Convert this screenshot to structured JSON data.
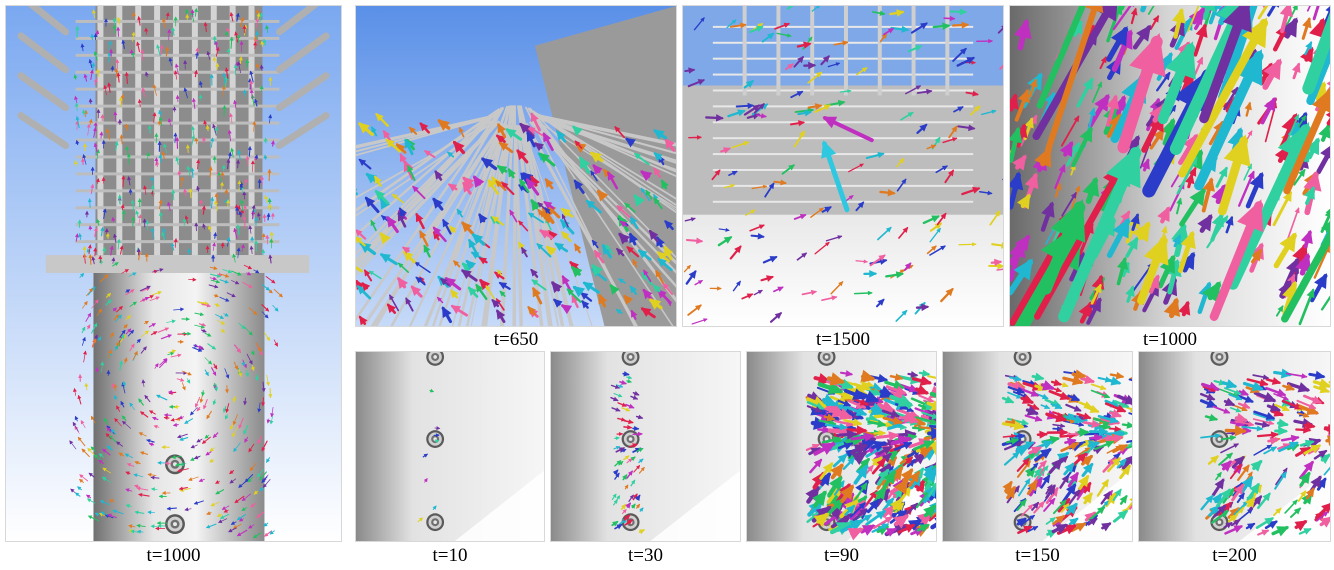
{
  "panels": [
    {
      "id": "main",
      "caption": "t=1000",
      "view": "overview-column"
    },
    {
      "id": "top1",
      "caption": "t=650",
      "view": "upward-rods"
    },
    {
      "id": "top2",
      "caption": "t=1500",
      "view": "chamber-interior"
    },
    {
      "id": "top3",
      "caption": "t=1000",
      "view": "closeup-arrows"
    },
    {
      "id": "b1",
      "caption": "t=10",
      "view": "wall-sequence"
    },
    {
      "id": "b2",
      "caption": "t=30",
      "view": "wall-sequence"
    },
    {
      "id": "b3",
      "caption": "t=90",
      "view": "wall-sequence"
    },
    {
      "id": "b4",
      "caption": "t=150",
      "view": "wall-sequence"
    },
    {
      "id": "b5",
      "caption": "t=200",
      "view": "wall-sequence"
    }
  ],
  "colors": {
    "sky_top": "#7aa8f0",
    "sky_bottom": "#ffffff",
    "steel": "#9a9a9a",
    "wall": "#d9d9d9",
    "arrow_palette": [
      "#e0204a",
      "#22c060",
      "#2a3cc8",
      "#e0d020",
      "#c030c0",
      "#20b8d0",
      "#e07a20",
      "#7030a0",
      "#30d0a0",
      "#f060a0"
    ]
  }
}
